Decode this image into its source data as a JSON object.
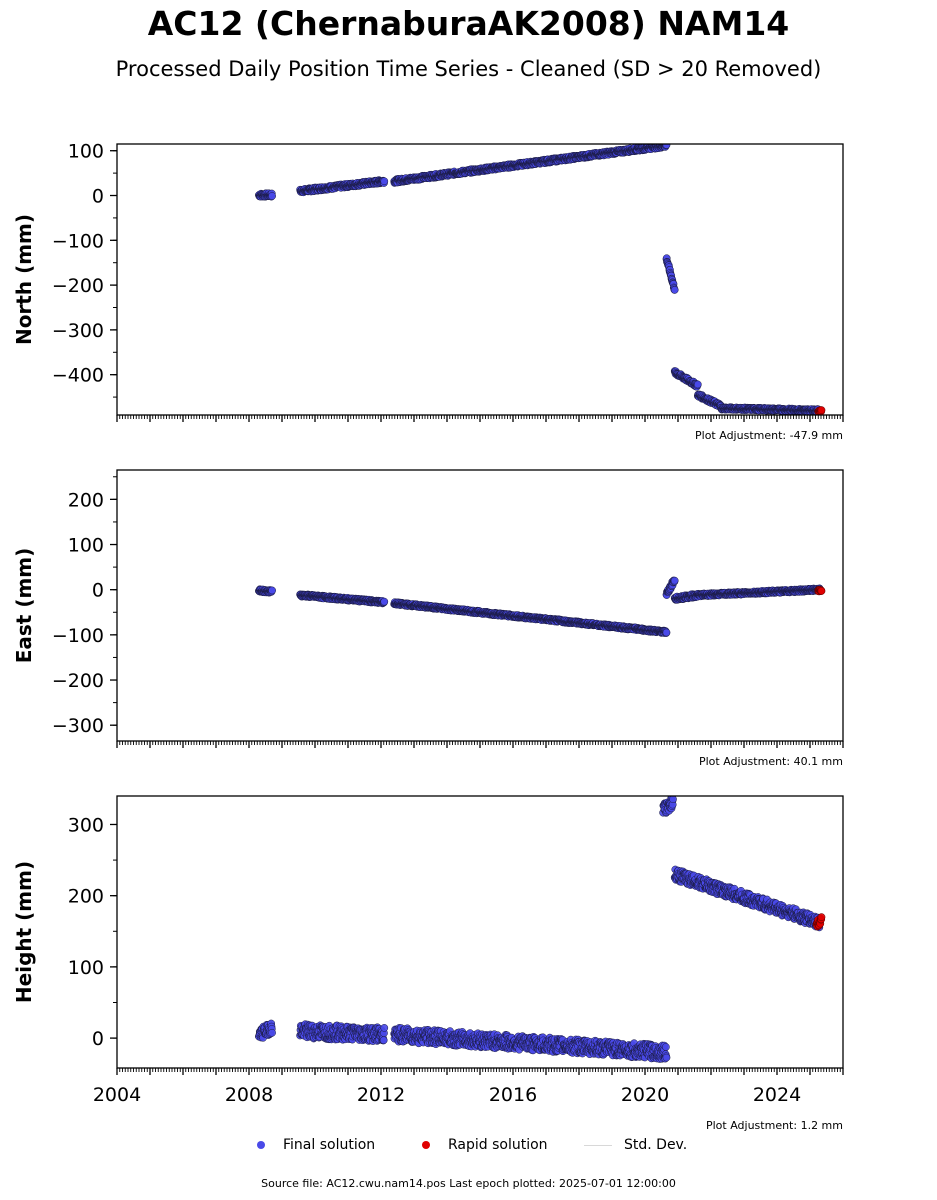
{
  "title": "AC12 (ChernaburaAK2008) NAM14",
  "subtitle": "Processed Daily Position Time Series - Cleaned (SD > 20 Removed)",
  "colors": {
    "final": "#4a4ae8",
    "final_edge": "#1a1a40",
    "rapid": "#e00000",
    "std": "#d8d8d8"
  },
  "legend": {
    "final": "Final solution",
    "rapid": "Rapid solution",
    "std": "Std. Dev."
  },
  "footer": "Source file: AC12.cwu.nam14.pos  Last epoch plotted: 2025-07-01 12:00:00",
  "chart_data": [
    {
      "type": "scatter",
      "ylabel": "North (mm)",
      "adjustment": "Plot Adjustment: -47.9 mm",
      "xlim": [
        2004.0,
        2026.0
      ],
      "ylim": [
        -490,
        115
      ],
      "yticks": [
        100,
        0,
        -100,
        -200,
        -300,
        -400
      ],
      "ytick_labels": [
        "100",
        "0",
        "−100",
        "−200",
        "−300",
        "−400"
      ],
      "series": [
        {
          "name": "Final solution",
          "segments": [
            {
              "x": [
                2008.3,
                2008.7
              ],
              "y": [
                1,
                1
              ],
              "noise": 4
            },
            {
              "x": [
                2009.55,
                2012.1
              ],
              "y": [
                10,
                32
              ],
              "noise": 4
            },
            {
              "x": [
                2012.4,
                2020.65
              ],
              "y": [
                32,
                112
              ],
              "noise": 4
            },
            {
              "x": [
                2020.65,
                2020.9
              ],
              "y": [
                -140,
                -210
              ],
              "noise": 4
            },
            {
              "x": [
                2020.9,
                2021.6
              ],
              "y": [
                -395,
                -425
              ],
              "noise": 4
            },
            {
              "x": [
                2021.6,
                2022.3
              ],
              "y": [
                -445,
                -470
              ],
              "noise": 4
            },
            {
              "x": [
                2022.3,
                2025.3
              ],
              "y": [
                -475,
                -480
              ],
              "noise": 3
            }
          ]
        },
        {
          "name": "Rapid solution",
          "segments": [
            {
              "x": [
                2025.25,
                2025.35
              ],
              "y": [
                -482,
                -480
              ],
              "noise": 2
            }
          ]
        }
      ]
    },
    {
      "type": "scatter",
      "ylabel": "East (mm)",
      "adjustment": "Plot Adjustment: 40.1 mm",
      "xlim": [
        2004.0,
        2026.0
      ],
      "ylim": [
        -335,
        265
      ],
      "yticks": [
        200,
        100,
        0,
        -100,
        -200,
        -300
      ],
      "ytick_labels": [
        "200",
        "100",
        "0",
        "−100",
        "−200",
        "−300"
      ],
      "series": [
        {
          "name": "Final solution",
          "segments": [
            {
              "x": [
                2008.3,
                2008.7
              ],
              "y": [
                -2,
                -4
              ],
              "noise": 3
            },
            {
              "x": [
                2009.55,
                2012.1
              ],
              "y": [
                -12,
                -28
              ],
              "noise": 3
            },
            {
              "x": [
                2012.4,
                2020.65
              ],
              "y": [
                -30,
                -94
              ],
              "noise": 3
            },
            {
              "x": [
                2020.65,
                2020.9
              ],
              "y": [
                -10,
                22
              ],
              "noise": 5
            },
            {
              "x": [
                2020.9,
                2021.6
              ],
              "y": [
                -20,
                -12
              ],
              "noise": 4
            },
            {
              "x": [
                2021.6,
                2025.3
              ],
              "y": [
                -12,
                0
              ],
              "noise": 3
            }
          ]
        },
        {
          "name": "Rapid solution",
          "segments": [
            {
              "x": [
                2025.25,
                2025.35
              ],
              "y": [
                -2,
                -2
              ],
              "noise": 2
            }
          ]
        }
      ]
    },
    {
      "type": "scatter",
      "ylabel": "Height (mm)",
      "adjustment": "Plot Adjustment: 1.2 mm",
      "xlim": [
        2004.0,
        2026.0
      ],
      "ylim": [
        -42,
        340
      ],
      "yticks": [
        300,
        200,
        100,
        0
      ],
      "ytick_labels": [
        "300",
        "200",
        "100",
        "0"
      ],
      "xticks": [
        2004,
        2008,
        2012,
        2016,
        2020,
        2024
      ],
      "xtick_labels": [
        "2004",
        "2008",
        "2012",
        "2016",
        "2020",
        "2024"
      ],
      "series": [
        {
          "name": "Final solution",
          "segments": [
            {
              "x": [
                2008.3,
                2008.7
              ],
              "y": [
                5,
                15
              ],
              "noise": 8
            },
            {
              "x": [
                2009.55,
                2012.1
              ],
              "y": [
                10,
                5
              ],
              "noise": 10
            },
            {
              "x": [
                2012.4,
                2020.65
              ],
              "y": [
                5,
                -20
              ],
              "noise": 10
            },
            {
              "x": [
                2020.55,
                2020.85
              ],
              "y": [
                320,
                332
              ],
              "noise": 8
            },
            {
              "x": [
                2020.9,
                2025.3
              ],
              "y": [
                230,
                162
              ],
              "noise": 8
            }
          ]
        },
        {
          "name": "Rapid solution",
          "segments": [
            {
              "x": [
                2025.2,
                2025.35
              ],
              "y": [
                160,
                165
              ],
              "noise": 5
            }
          ]
        }
      ]
    }
  ]
}
